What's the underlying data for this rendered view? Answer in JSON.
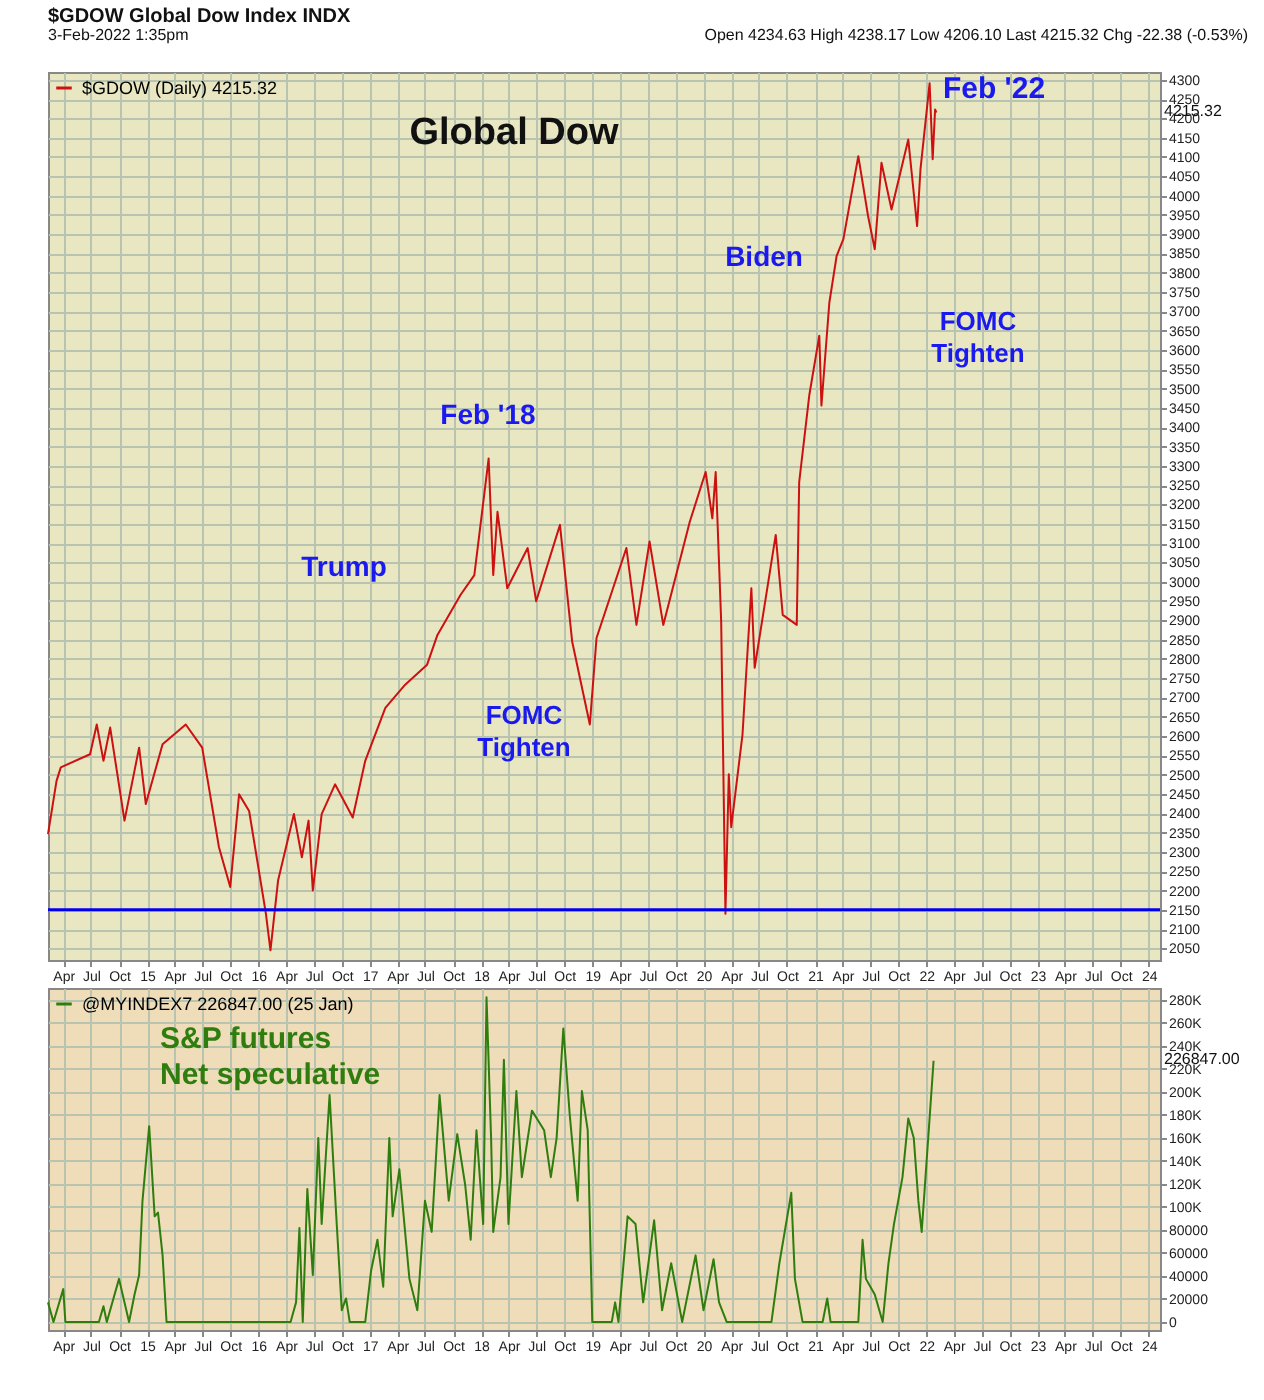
{
  "chart_data": [
    {
      "type": "line",
      "title": "Global Dow",
      "annotations": [
        "$GDOW Global Dow Index INDX",
        "3-Feb-2022 1:35pm",
        "Open 4234.63 High 4238.17 Low 4206.10 Last 4215.32 Chg -22.38 (-0.53%)",
        "Feb '18",
        "Trump",
        "FOMC\nTighten",
        "Biden",
        "FOMC\nTighten",
        "Feb '22",
        "4215.32"
      ],
      "series": [
        {
          "name": "$GDOW (Daily) 4215.32",
          "color": "#cc1111",
          "x": [
            "2014-02-10",
            "2014-03-10",
            "2014-03-24",
            "2014-06-28",
            "2014-07-20",
            "2014-08-11",
            "2014-09-02",
            "2014-10-19",
            "2014-12-06",
            "2014-12-28",
            "2015-02-21",
            "2015-05-08",
            "2015-07-01",
            "2015-08-25",
            "2015-10-01",
            "2015-10-30",
            "2015-12-02",
            "2016-01-26",
            "2016-02-10",
            "2016-03-06",
            "2016-04-27",
            "2016-05-23",
            "2016-06-14",
            "2016-06-28",
            "2016-07-27",
            "2016-09-09",
            "2016-11-06",
            "2016-12-17",
            "2017-02-21",
            "2017-04-27",
            "2017-07-08",
            "2017-08-11",
            "2017-10-26",
            "2017-12-10",
            "2018-01-26",
            "2018-02-10",
            "2018-02-24",
            "2018-03-28",
            "2018-06-03",
            "2018-07-01",
            "2018-09-17",
            "2018-10-27",
            "2018-12-24",
            "2019-01-15",
            "2019-04-23",
            "2019-05-26",
            "2019-07-08",
            "2019-08-22",
            "2019-11-17",
            "2020-01-08",
            "2020-01-30",
            "2020-02-10",
            "2020-02-28",
            "2020-03-13",
            "2020-03-24",
            "2020-04-01",
            "2020-05-08",
            "2020-06-06",
            "2020-06-17",
            "2020-08-25",
            "2020-09-17",
            "2020-11-02",
            "2020-11-10",
            "2020-12-13",
            "2021-01-15",
            "2021-01-22",
            "2021-02-17",
            "2021-03-13",
            "2021-04-04",
            "2021-05-23",
            "2021-06-24",
            "2021-07-16",
            "2021-08-07",
            "2021-09-09",
            "2021-11-03",
            "2021-12-02",
            "2021-12-13",
            "2022-01-12",
            "2022-01-22",
            "2022-01-30",
            "2022-02-03"
          ],
          "values": [
            2346,
            2484,
            2519,
            2553,
            2630,
            2536,
            2622,
            2381,
            2570,
            2424,
            2579,
            2630,
            2570,
            2312,
            2209,
            2449,
            2406,
            2140,
            2045,
            2226,
            2398,
            2286,
            2381,
            2200,
            2398,
            2475,
            2389,
            2536,
            2673,
            2733,
            2785,
            2862,
            2966,
            3017,
            3319,
            3017,
            3181,
            2983,
            3087,
            2949,
            3147,
            2845,
            2630,
            2854,
            3087,
            2888,
            3104,
            2888,
            3155,
            3284,
            3164,
            3284,
            2897,
            2140,
            2501,
            2364,
            2604,
            2983,
            2777,
            3121,
            2914,
            2888,
            3258,
            3482,
            3637,
            3456,
            3723,
            3844,
            3887,
            4102,
            3947,
            3861,
            4085,
            3964,
            4145,
            3921,
            4068,
            4291,
            4094,
            4223,
            4215
          ]
        }
      ],
      "ref_lines": [
        {
          "axis": "y",
          "value": 2150,
          "color": "#0000ee"
        }
      ],
      "legend": "top left",
      "grid": true,
      "xlim": [
        "2014-02-10",
        "2024-02-07"
      ],
      "xticks": [
        {
          "value": "2014-04-01",
          "label": "Apr"
        },
        {
          "value": "2014-07-01",
          "label": "Jul"
        },
        {
          "value": "2014-10-01",
          "label": "Oct"
        },
        {
          "value": "2015-01-01",
          "label": "15"
        },
        {
          "value": "2015-04-01",
          "label": "Apr"
        },
        {
          "value": "2015-07-01",
          "label": "Jul"
        },
        {
          "value": "2015-10-01",
          "label": "Oct"
        },
        {
          "value": "2016-01-01",
          "label": "16"
        },
        {
          "value": "2016-04-01",
          "label": "Apr"
        },
        {
          "value": "2016-07-01",
          "label": "Jul"
        },
        {
          "value": "2016-10-01",
          "label": "Oct"
        },
        {
          "value": "2017-01-01",
          "label": "17"
        },
        {
          "value": "2017-04-01",
          "label": "Apr"
        },
        {
          "value": "2017-07-01",
          "label": "Jul"
        },
        {
          "value": "2017-10-01",
          "label": "Oct"
        },
        {
          "value": "2018-01-01",
          "label": "18"
        },
        {
          "value": "2018-04-01",
          "label": "Apr"
        },
        {
          "value": "2018-07-01",
          "label": "Jul"
        },
        {
          "value": "2018-10-01",
          "label": "Oct"
        },
        {
          "value": "2019-01-01",
          "label": "19"
        },
        {
          "value": "2019-04-01",
          "label": "Apr"
        },
        {
          "value": "2019-07-01",
          "label": "Jul"
        },
        {
          "value": "2019-10-01",
          "label": "Oct"
        },
        {
          "value": "2020-01-01",
          "label": "20"
        },
        {
          "value": "2020-04-01",
          "label": "Apr"
        },
        {
          "value": "2020-07-01",
          "label": "Jul"
        },
        {
          "value": "2020-10-01",
          "label": "Oct"
        },
        {
          "value": "2021-01-01",
          "label": "21"
        },
        {
          "value": "2021-04-01",
          "label": "Apr"
        },
        {
          "value": "2021-07-01",
          "label": "Jul"
        },
        {
          "value": "2021-10-01",
          "label": "Oct"
        },
        {
          "value": "2022-01-01",
          "label": "22"
        },
        {
          "value": "2022-04-01",
          "label": "Apr"
        },
        {
          "value": "2022-07-01",
          "label": "Jul"
        },
        {
          "value": "2022-10-01",
          "label": "Oct"
        },
        {
          "value": "2023-01-01",
          "label": "23"
        },
        {
          "value": "2023-04-01",
          "label": "Apr"
        },
        {
          "value": "2023-07-01",
          "label": "Jul"
        },
        {
          "value": "2023-10-01",
          "label": "Oct"
        },
        {
          "value": "2024-01-01",
          "label": "24"
        }
      ],
      "ylim": [
        2020,
        4320
      ],
      "yticks": [
        2050,
        2100,
        2150,
        2200,
        2250,
        2300,
        2350,
        2400,
        2450,
        2500,
        2550,
        2600,
        2650,
        2700,
        2750,
        2800,
        2850,
        2900,
        2950,
        3000,
        3050,
        3100,
        3150,
        3200,
        3250,
        3300,
        3350,
        3400,
        3450,
        3500,
        3550,
        3600,
        3650,
        3700,
        3750,
        3800,
        3850,
        3900,
        3950,
        4000,
        4050,
        4100,
        4150,
        4200,
        4250,
        4300
      ]
    },
    {
      "type": "line",
      "annotations": [
        "S&P futures\nNet speculative",
        "226847.00"
      ],
      "series": [
        {
          "name": "@MYINDEX7 226847.00 (25 Jan)",
          "color": "#2e7d0e",
          "x": [
            "2014-02-10",
            "2014-02-28",
            "2014-04-01",
            "2014-04-08",
            "2014-07-27",
            "2014-08-11",
            "2014-08-22",
            "2014-10-01",
            "2014-11-03",
            "2014-11-21",
            "2014-12-06",
            "2014-12-17",
            "2015-01-08",
            "2015-01-26",
            "2015-02-06",
            "2015-02-21",
            "2015-03-06",
            "2016-04-16",
            "2016-05-04",
            "2016-05-15",
            "2016-05-26",
            "2016-06-10",
            "2016-06-28",
            "2016-07-16",
            "2016-07-27",
            "2016-08-22",
            "2016-09-13",
            "2016-10-01",
            "2016-10-15",
            "2016-10-27",
            "2016-12-17",
            "2017-01-05",
            "2017-01-26",
            "2017-02-14",
            "2017-03-06",
            "2017-03-17",
            "2017-04-08",
            "2017-05-11",
            "2017-06-06",
            "2017-07-01",
            "2017-07-23",
            "2017-08-18",
            "2017-09-17",
            "2017-10-15",
            "2017-11-10",
            "2017-11-28",
            "2017-12-17",
            "2018-01-08",
            "2018-01-19",
            "2018-02-03",
            "2018-02-10",
            "2018-03-06",
            "2018-03-17",
            "2018-04-01",
            "2018-04-27",
            "2018-05-15",
            "2018-06-17",
            "2018-07-27",
            "2018-08-18",
            "2018-09-06",
            "2018-09-28",
            "2018-10-19",
            "2018-11-14",
            "2018-11-28",
            "2018-12-17",
            "2019-01-01",
            "2019-03-06",
            "2019-03-17",
            "2019-03-28",
            "2019-04-27",
            "2019-05-23",
            "2019-06-17",
            "2019-07-23",
            "2019-08-18",
            "2019-09-17",
            "2019-10-23",
            "2019-12-06",
            "2020-01-01",
            "2020-02-03",
            "2020-02-21",
            "2020-03-17",
            "2020-08-11",
            "2020-09-06",
            "2020-10-15",
            "2020-10-27",
            "2020-11-21",
            "2021-01-26",
            "2021-02-10",
            "2021-02-21",
            "2021-05-23",
            "2021-06-06",
            "2021-06-17",
            "2021-07-16",
            "2021-08-11",
            "2021-08-30",
            "2021-09-17",
            "2021-10-15",
            "2021-11-03",
            "2021-11-21",
            "2021-12-06",
            "2021-12-17",
            "2022-01-25"
          ],
          "values": [
            17000,
            0,
            28500,
            0,
            0,
            13600,
            0,
            37400,
            0,
            23800,
            40800,
            105000,
            170000,
            91700,
            95000,
            57800,
            0,
            0,
            17000,
            81500,
            0,
            115500,
            40800,
            159700,
            85000,
            197000,
            91700,
            10200,
            20400,
            0,
            0,
            44200,
            71400,
            30600,
            159700,
            91700,
            132500,
            37400,
            10200,
            105300,
            78200,
            197000,
            105300,
            163100,
            118900,
            71400,
            166500,
            85000,
            282000,
            159700,
            78200,
            125700,
            227700,
            85000,
            200500,
            125700,
            183500,
            166500,
            125700,
            159700,
            254800,
            180100,
            105300,
            200500,
            166500,
            0,
            0,
            17000,
            0,
            91700,
            85000,
            17000,
            88300,
            10200,
            51000,
            0,
            57800,
            10200,
            54400,
            17000,
            0,
            0,
            51000,
            112100,
            37400,
            0,
            0,
            20400,
            0,
            0,
            71400,
            37400,
            23800,
            0,
            51000,
            85000,
            125700,
            176700,
            159700,
            105300,
            78200,
            226847
          ]
        }
      ],
      "legend": "top left",
      "grid": true,
      "xlim": [
        "2014-02-10",
        "2024-02-07"
      ],
      "xticks": [
        {
          "value": "2014-04-01",
          "label": "Apr"
        },
        {
          "value": "2014-07-01",
          "label": "Jul"
        },
        {
          "value": "2014-10-01",
          "label": "Oct"
        },
        {
          "value": "2015-01-01",
          "label": "15"
        },
        {
          "value": "2015-04-01",
          "label": "Apr"
        },
        {
          "value": "2015-07-01",
          "label": "Jul"
        },
        {
          "value": "2015-10-01",
          "label": "Oct"
        },
        {
          "value": "2016-01-01",
          "label": "16"
        },
        {
          "value": "2016-04-01",
          "label": "Apr"
        },
        {
          "value": "2016-07-01",
          "label": "Jul"
        },
        {
          "value": "2016-10-01",
          "label": "Oct"
        },
        {
          "value": "2017-01-01",
          "label": "17"
        },
        {
          "value": "2017-04-01",
          "label": "Apr"
        },
        {
          "value": "2017-07-01",
          "label": "Jul"
        },
        {
          "value": "2017-10-01",
          "label": "Oct"
        },
        {
          "value": "2018-01-01",
          "label": "18"
        },
        {
          "value": "2018-04-01",
          "label": "Apr"
        },
        {
          "value": "2018-07-01",
          "label": "Jul"
        },
        {
          "value": "2018-10-01",
          "label": "Oct"
        },
        {
          "value": "2019-01-01",
          "label": "19"
        },
        {
          "value": "2019-04-01",
          "label": "Apr"
        },
        {
          "value": "2019-07-01",
          "label": "Jul"
        },
        {
          "value": "2019-10-01",
          "label": "Oct"
        },
        {
          "value": "2020-01-01",
          "label": "20"
        },
        {
          "value": "2020-04-01",
          "label": "Apr"
        },
        {
          "value": "2020-07-01",
          "label": "Jul"
        },
        {
          "value": "2020-10-01",
          "label": "Oct"
        },
        {
          "value": "2021-01-01",
          "label": "21"
        },
        {
          "value": "2021-04-01",
          "label": "Apr"
        },
        {
          "value": "2021-07-01",
          "label": "Jul"
        },
        {
          "value": "2021-10-01",
          "label": "Oct"
        },
        {
          "value": "2022-01-01",
          "label": "22"
        },
        {
          "value": "2022-04-01",
          "label": "Apr"
        },
        {
          "value": "2022-07-01",
          "label": "Jul"
        },
        {
          "value": "2022-10-01",
          "label": "Oct"
        },
        {
          "value": "2023-01-01",
          "label": "23"
        },
        {
          "value": "2023-04-01",
          "label": "Apr"
        },
        {
          "value": "2023-07-01",
          "label": "Jul"
        },
        {
          "value": "2023-10-01",
          "label": "Oct"
        },
        {
          "value": "2024-01-01",
          "label": "24"
        }
      ],
      "ylim": [
        -7000,
        290000
      ],
      "yticks": [
        0,
        20000,
        40000,
        60000,
        80000,
        {
          "value": 100000,
          "label": "100K"
        },
        {
          "value": 120000,
          "label": "120K"
        },
        {
          "value": 140000,
          "label": "140K"
        },
        {
          "value": 160000,
          "label": "160K"
        },
        {
          "value": 180000,
          "label": "180K"
        },
        {
          "value": 200000,
          "label": "200K"
        },
        {
          "value": 220000,
          "label": "220K"
        },
        {
          "value": 240000,
          "label": "240K"
        },
        {
          "value": 260000,
          "label": "260K"
        },
        {
          "value": 280000,
          "label": "280K"
        }
      ]
    }
  ]
}
